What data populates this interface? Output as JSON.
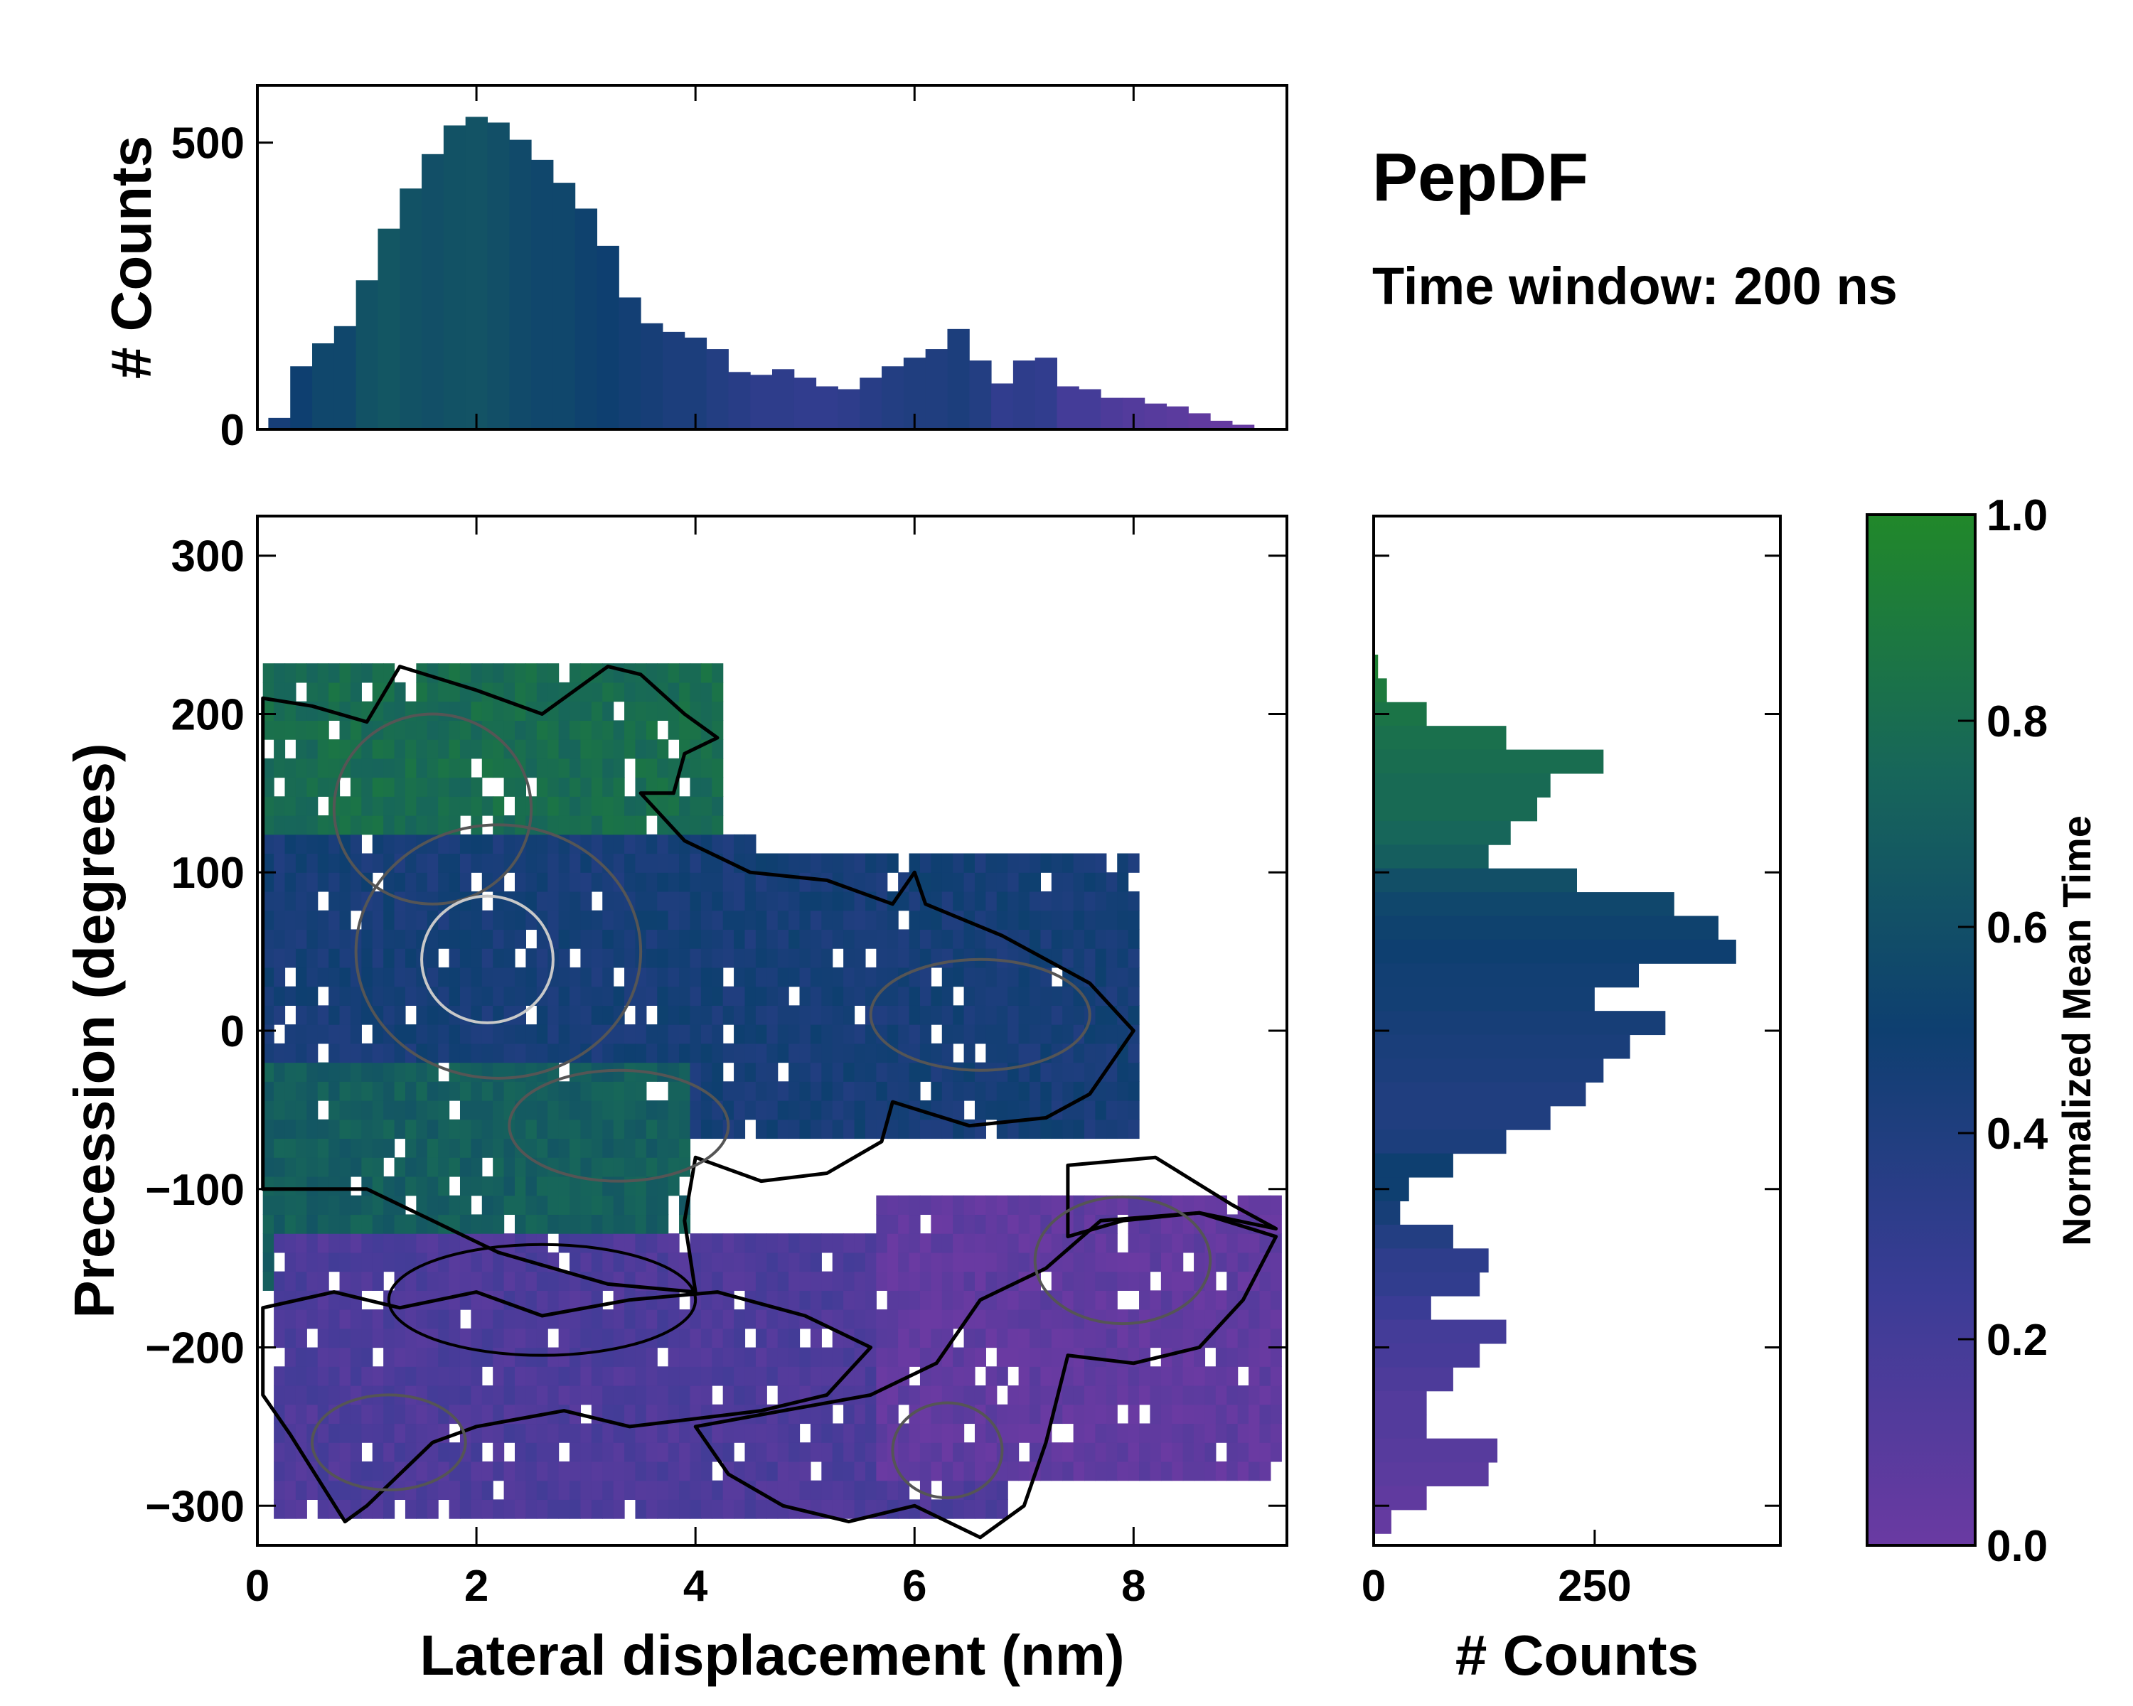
{
  "chart_data": [
    {
      "type": "bar",
      "panel": "top-marginal-histogram",
      "ylabel": "# Counts",
      "xlim": [
        0,
        9.4
      ],
      "ylim": [
        0,
        600
      ],
      "yticks": [
        0,
        500
      ],
      "color_by": "normalized mean time",
      "bins": [
        {
          "x": 0.2,
          "count": 20,
          "t": 0.45
        },
        {
          "x": 0.4,
          "count": 110,
          "t": 0.5
        },
        {
          "x": 0.6,
          "count": 150,
          "t": 0.55
        },
        {
          "x": 0.8,
          "count": 180,
          "t": 0.55
        },
        {
          "x": 1.0,
          "count": 260,
          "t": 0.62
        },
        {
          "x": 1.2,
          "count": 350,
          "t": 0.65
        },
        {
          "x": 1.4,
          "count": 420,
          "t": 0.62
        },
        {
          "x": 1.6,
          "count": 480,
          "t": 0.6
        },
        {
          "x": 1.8,
          "count": 530,
          "t": 0.62
        },
        {
          "x": 2.0,
          "count": 545,
          "t": 0.63
        },
        {
          "x": 2.2,
          "count": 535,
          "t": 0.6
        },
        {
          "x": 2.4,
          "count": 505,
          "t": 0.57
        },
        {
          "x": 2.6,
          "count": 470,
          "t": 0.55
        },
        {
          "x": 2.8,
          "count": 430,
          "t": 0.55
        },
        {
          "x": 3.0,
          "count": 385,
          "t": 0.52
        },
        {
          "x": 3.2,
          "count": 320,
          "t": 0.5
        },
        {
          "x": 3.4,
          "count": 230,
          "t": 0.47
        },
        {
          "x": 3.6,
          "count": 185,
          "t": 0.45
        },
        {
          "x": 3.8,
          "count": 170,
          "t": 0.42
        },
        {
          "x": 4.0,
          "count": 160,
          "t": 0.42
        },
        {
          "x": 4.2,
          "count": 140,
          "t": 0.38
        },
        {
          "x": 4.4,
          "count": 100,
          "t": 0.35
        },
        {
          "x": 4.6,
          "count": 95,
          "t": 0.32
        },
        {
          "x": 4.8,
          "count": 105,
          "t": 0.32
        },
        {
          "x": 5.0,
          "count": 90,
          "t": 0.3
        },
        {
          "x": 5.2,
          "count": 75,
          "t": 0.3
        },
        {
          "x": 5.4,
          "count": 70,
          "t": 0.32
        },
        {
          "x": 5.6,
          "count": 90,
          "t": 0.35
        },
        {
          "x": 5.8,
          "count": 110,
          "t": 0.38
        },
        {
          "x": 6.0,
          "count": 125,
          "t": 0.4
        },
        {
          "x": 6.2,
          "count": 140,
          "t": 0.4
        },
        {
          "x": 6.4,
          "count": 175,
          "t": 0.42
        },
        {
          "x": 6.6,
          "count": 120,
          "t": 0.38
        },
        {
          "x": 6.8,
          "count": 80,
          "t": 0.3
        },
        {
          "x": 7.0,
          "count": 120,
          "t": 0.32
        },
        {
          "x": 7.2,
          "count": 125,
          "t": 0.3
        },
        {
          "x": 7.4,
          "count": 75,
          "t": 0.2
        },
        {
          "x": 7.6,
          "count": 70,
          "t": 0.2
        },
        {
          "x": 7.8,
          "count": 55,
          "t": 0.15
        },
        {
          "x": 8.0,
          "count": 55,
          "t": 0.12
        },
        {
          "x": 8.2,
          "count": 45,
          "t": 0.1
        },
        {
          "x": 8.4,
          "count": 40,
          "t": 0.08
        },
        {
          "x": 8.6,
          "count": 28,
          "t": 0.05
        },
        {
          "x": 8.8,
          "count": 15,
          "t": 0.03
        },
        {
          "x": 9.0,
          "count": 8,
          "t": 0.02
        }
      ]
    },
    {
      "type": "heatmap",
      "panel": "main-2d-histogram",
      "xlabel": "Lateral displacement (nm)",
      "ylabel": "Precession (degrees)",
      "xlim": [
        0,
        9.4
      ],
      "ylim": [
        -325,
        325
      ],
      "xticks": [
        0,
        2,
        4,
        6,
        8
      ],
      "yticks": [
        -300,
        -200,
        -100,
        0,
        100,
        200,
        300
      ],
      "color_by": "normalized mean time",
      "regions": [
        {
          "name": "upper-green",
          "x_range": [
            0.05,
            4.2
          ],
          "y_range": [
            100,
            225
          ],
          "t": 0.8
        },
        {
          "name": "central-blue",
          "x_range": [
            0.05,
            8.0
          ],
          "y_range": [
            -70,
            120
          ],
          "t": 0.45
        },
        {
          "name": "lower-left-green",
          "x_range": [
            0.05,
            3.9
          ],
          "y_range": [
            -165,
            -30
          ],
          "t": 0.7
        },
        {
          "name": "purple-band",
          "x_range": [
            0.1,
            6.8
          ],
          "y_range": [
            -315,
            -130
          ],
          "t": 0.15
        },
        {
          "name": "lower-right-purple",
          "x_range": [
            5.6,
            9.3
          ],
          "y_range": [
            -290,
            -110
          ],
          "t": 0.05
        }
      ]
    },
    {
      "type": "bar",
      "panel": "right-marginal-histogram",
      "xlabel": "# Counts",
      "xlim": [
        0,
        460
      ],
      "xticks": [
        0,
        250
      ],
      "ylim": [
        -325,
        325
      ],
      "orientation": "horizontal",
      "bins": [
        {
          "y": 230,
          "count": 5,
          "t": 0.95
        },
        {
          "y": 215,
          "count": 15,
          "t": 0.9
        },
        {
          "y": 200,
          "count": 60,
          "t": 0.85
        },
        {
          "y": 185,
          "count": 150,
          "t": 0.82
        },
        {
          "y": 170,
          "count": 260,
          "t": 0.8
        },
        {
          "y": 155,
          "count": 200,
          "t": 0.78
        },
        {
          "y": 140,
          "count": 185,
          "t": 0.78
        },
        {
          "y": 125,
          "count": 155,
          "t": 0.75
        },
        {
          "y": 110,
          "count": 130,
          "t": 0.7
        },
        {
          "y": 95,
          "count": 230,
          "t": 0.6
        },
        {
          "y": 80,
          "count": 340,
          "t": 0.55
        },
        {
          "y": 65,
          "count": 390,
          "t": 0.52
        },
        {
          "y": 50,
          "count": 410,
          "t": 0.5
        },
        {
          "y": 35,
          "count": 300,
          "t": 0.48
        },
        {
          "y": 20,
          "count": 250,
          "t": 0.47
        },
        {
          "y": 5,
          "count": 330,
          "t": 0.45
        },
        {
          "y": -10,
          "count": 290,
          "t": 0.43
        },
        {
          "y": -25,
          "count": 260,
          "t": 0.42
        },
        {
          "y": -40,
          "count": 240,
          "t": 0.4
        },
        {
          "y": -55,
          "count": 200,
          "t": 0.4
        },
        {
          "y": -70,
          "count": 150,
          "t": 0.42
        },
        {
          "y": -85,
          "count": 90,
          "t": 0.5
        },
        {
          "y": -100,
          "count": 40,
          "t": 0.5
        },
        {
          "y": -115,
          "count": 30,
          "t": 0.45
        },
        {
          "y": -130,
          "count": 90,
          "t": 0.38
        },
        {
          "y": -145,
          "count": 130,
          "t": 0.32
        },
        {
          "y": -160,
          "count": 120,
          "t": 0.3
        },
        {
          "y": -175,
          "count": 65,
          "t": 0.25
        },
        {
          "y": -190,
          "count": 150,
          "t": 0.2
        },
        {
          "y": -205,
          "count": 120,
          "t": 0.18
        },
        {
          "y": -220,
          "count": 90,
          "t": 0.15
        },
        {
          "y": -235,
          "count": 60,
          "t": 0.12
        },
        {
          "y": -250,
          "count": 60,
          "t": 0.12
        },
        {
          "y": -265,
          "count": 140,
          "t": 0.1
        },
        {
          "y": -280,
          "count": 130,
          "t": 0.08
        },
        {
          "y": -295,
          "count": 60,
          "t": 0.05
        },
        {
          "y": -310,
          "count": 20,
          "t": 0.03
        }
      ]
    },
    {
      "type": "colorbar",
      "panel": "colorbar",
      "label": "Normalized Mean Time",
      "range": [
        0.0,
        1.0
      ],
      "tick_labels": [
        "0.0",
        "0.2",
        "0.4",
        "0.6",
        "0.8",
        "1.0"
      ],
      "colors": {
        "low": "#6a3aa2",
        "mid": "#0e3f70",
        "high": "#21882a"
      }
    }
  ],
  "text": {
    "title": "PepDF",
    "subtitle": "Time window: 200 ns"
  },
  "colors": {
    "contour_outer": "#000000",
    "contour_inner": "#555555",
    "contour_core": "#c8c8c8"
  }
}
